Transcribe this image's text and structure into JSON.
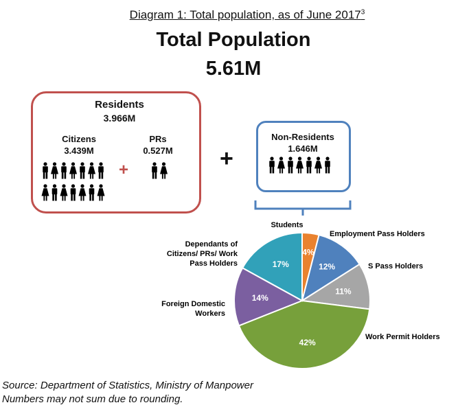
{
  "header": {
    "caption": "Diagram 1: Total population, as of June 2017",
    "caption_sup": "3",
    "title": "Total Population",
    "total": "5.61M"
  },
  "residents": {
    "label": "Residents",
    "value": "3.966M",
    "citizens_label": "Citizens",
    "citizens_value": "3.439M",
    "prs_label": "PRs",
    "prs_value": "0.527M",
    "plus": "+"
  },
  "non_residents": {
    "label": "Non-Residents",
    "value": "1.646M"
  },
  "main_plus": "+",
  "colors": {
    "residents_border": "#c0504d",
    "nonresidents_border": "#4f81bd",
    "icon": "#000000"
  },
  "icons": {
    "citizens": "people-icons",
    "prs": "people-icons",
    "non_residents": "people-icons"
  },
  "chart_data": {
    "type": "pie",
    "slices": [
      {
        "label": "Students",
        "value": 4,
        "display": "4%",
        "color": "#e9822f"
      },
      {
        "label": "Employment Pass Holders",
        "value": 12,
        "display": "12%",
        "color": "#4f81bd"
      },
      {
        "label": "S Pass Holders",
        "value": 11,
        "display": "11%",
        "color": "#a6a6a6"
      },
      {
        "label": "Work Permit Holders",
        "value": 42,
        "display": "42%",
        "color": "#77a03b"
      },
      {
        "label": "Foreign Domestic Workers",
        "value": 14,
        "display": "14%",
        "color": "#7b5fa0"
      },
      {
        "label": "Dependants of Citizens/ PRs/ Work Pass Holders",
        "value": 17,
        "display": "17%",
        "color": "#31a1b9"
      }
    ]
  },
  "footer": {
    "source": "Source: Department of Statistics, Ministry of Manpower",
    "note": "Numbers may not sum due to rounding."
  }
}
